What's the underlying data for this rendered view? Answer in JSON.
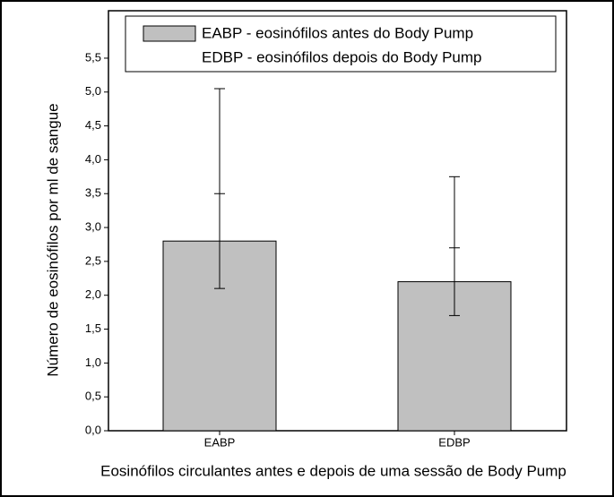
{
  "chart_data": {
    "type": "bar",
    "legend": [
      "EABP - eosinófilos antes do Body Pump",
      "EDBP - eosinófilos depois do Body Pump"
    ],
    "xlabel": "Eosinófilos circulantes antes e depois de uma sessão de Body Pump",
    "ylabel": "Número de eosinófilos por ml de sangue",
    "categories": [
      "EABP",
      "EDBP"
    ],
    "values": [
      2.8,
      2.2
    ],
    "errors": [
      0.7,
      0.5
    ],
    "upper": [
      5.05,
      3.75
    ],
    "color": "#c0c0c0",
    "ylim": [
      0,
      6.2
    ],
    "yticks": [
      {
        "value": 0,
        "label": "0,0"
      },
      {
        "value": 0.5,
        "label": "0,5"
      },
      {
        "value": 1,
        "label": "1,0"
      },
      {
        "value": 1.5,
        "label": "1,5"
      },
      {
        "value": 2,
        "label": "2,0"
      },
      {
        "value": 2.5,
        "label": "2,5"
      },
      {
        "value": 3,
        "label": "3,0"
      },
      {
        "value": 3.5,
        "label": "3,5"
      },
      {
        "value": 4,
        "label": "4,0"
      },
      {
        "value": 4.5,
        "label": "4,5"
      },
      {
        "value": 5,
        "label": "5,0"
      },
      {
        "value": 5.5,
        "label": "5,5"
      }
    ],
    "grid": false
  }
}
